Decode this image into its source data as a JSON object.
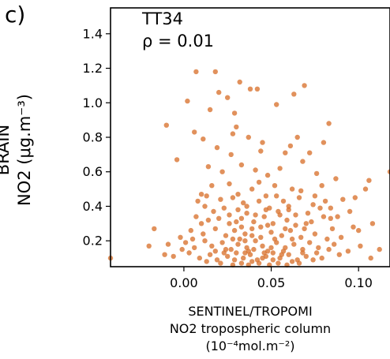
{
  "panel_label": "c)",
  "chart_data": {
    "type": "scatter",
    "title": "",
    "ylabel_lines": [
      "BRAIN",
      "NO2 (μg.m⁻³)"
    ],
    "xlabel_lines": [
      "SENTINEL/TROPOMI",
      "NO2 tropospheric column",
      "(10⁻⁴mol.m⁻²)"
    ],
    "annotations": [
      "TT34",
      "ρ = 0.01"
    ],
    "xlim": [
      -0.042,
      0.118
    ],
    "ylim": [
      0.05,
      1.55
    ],
    "xticks": [
      "0.00",
      "0.05",
      "0.10"
    ],
    "xtick_values": [
      0.0,
      0.05,
      0.1
    ],
    "yticks": [
      "0.2",
      "0.4",
      "0.6",
      "0.8",
      "1.0",
      "1.2",
      "1.4"
    ],
    "ytick_values": [
      0.2,
      0.4,
      0.6,
      0.8,
      1.0,
      1.2,
      1.4
    ],
    "grid": false,
    "marker_color": "#d9722e",
    "points": [
      [
        0.007,
        1.18
      ],
      [
        0.018,
        1.18
      ],
      [
        0.032,
        1.12
      ],
      [
        0.038,
        1.08
      ],
      [
        0.042,
        1.08
      ],
      [
        0.02,
        1.06
      ],
      [
        0.025,
        1.03
      ],
      [
        0.002,
        1.01
      ],
      [
        0.063,
        1.05
      ],
      [
        0.069,
        1.1
      ],
      [
        -0.01,
        0.87
      ],
      [
        0.015,
        0.96
      ],
      [
        0.029,
        0.94
      ],
      [
        0.03,
        0.86
      ],
      [
        0.053,
        0.99
      ],
      [
        0.083,
        0.88
      ],
      [
        0.006,
        0.83
      ],
      [
        0.011,
        0.79
      ],
      [
        0.028,
        0.82
      ],
      [
        0.037,
        0.8
      ],
      [
        0.045,
        0.77
      ],
      [
        0.065,
        0.8
      ],
      [
        0.08,
        0.77
      ],
      [
        -0.004,
        0.67
      ],
      [
        0.019,
        0.74
      ],
      [
        0.027,
        0.7
      ],
      [
        0.044,
        0.72
      ],
      [
        0.058,
        0.71
      ],
      [
        0.061,
        0.75
      ],
      [
        0.072,
        0.71
      ],
      [
        0.118,
        0.6
      ],
      [
        0.014,
        0.63
      ],
      [
        0.022,
        0.6
      ],
      [
        0.033,
        0.64
      ],
      [
        0.041,
        0.61
      ],
      [
        0.048,
        0.58
      ],
      [
        0.055,
        0.62
      ],
      [
        0.068,
        0.66
      ],
      [
        0.076,
        0.59
      ],
      [
        0.087,
        0.56
      ],
      [
        0.106,
        0.55
      ],
      [
        0.016,
        0.52
      ],
      [
        0.026,
        0.53
      ],
      [
        0.039,
        0.5
      ],
      [
        0.043,
        0.54
      ],
      [
        0.052,
        0.52
      ],
      [
        0.062,
        0.5
      ],
      [
        0.079,
        0.52
      ],
      [
        0.104,
        0.5
      ],
      [
        0.01,
        0.47
      ],
      [
        0.008,
        0.43
      ],
      [
        0.013,
        0.46
      ],
      [
        0.021,
        0.44
      ],
      [
        0.028,
        0.45
      ],
      [
        0.034,
        0.42
      ],
      [
        0.047,
        0.46
      ],
      [
        0.057,
        0.43
      ],
      [
        0.066,
        0.45
      ],
      [
        0.074,
        0.41
      ],
      [
        0.081,
        0.43
      ],
      [
        0.091,
        0.44
      ],
      [
        0.012,
        0.4
      ],
      [
        0.017,
        0.37
      ],
      [
        0.023,
        0.39
      ],
      [
        0.031,
        0.38
      ],
      [
        0.036,
        0.36
      ],
      [
        0.049,
        0.39
      ],
      [
        0.054,
        0.37
      ],
      [
        0.06,
        0.38
      ],
      [
        0.071,
        0.36
      ],
      [
        0.078,
        0.39
      ],
      [
        0.007,
        0.34
      ],
      [
        0.014,
        0.32
      ],
      [
        0.02,
        0.33
      ],
      [
        0.026,
        0.3
      ],
      [
        0.033,
        0.33
      ],
      [
        0.04,
        0.31
      ],
      [
        0.046,
        0.34
      ],
      [
        0.051,
        0.3
      ],
      [
        0.059,
        0.32
      ],
      [
        0.064,
        0.29
      ],
      [
        0.073,
        0.31
      ],
      [
        0.084,
        0.33
      ],
      [
        0.097,
        0.28
      ],
      [
        0.108,
        0.3
      ],
      [
        -0.017,
        0.27
      ],
      [
        -0.002,
        0.22
      ],
      [
        0.004,
        0.26
      ],
      [
        0.011,
        0.24
      ],
      [
        0.018,
        0.27
      ],
      [
        0.024,
        0.23
      ],
      [
        0.029,
        0.26
      ],
      [
        0.035,
        0.24
      ],
      [
        0.039,
        0.27
      ],
      [
        0.044,
        0.22
      ],
      [
        0.05,
        0.25
      ],
      [
        0.056,
        0.23
      ],
      [
        0.061,
        0.26
      ],
      [
        0.067,
        0.22
      ],
      [
        0.075,
        0.24
      ],
      [
        0.082,
        0.21
      ],
      [
        0.1,
        0.26
      ],
      [
        -0.02,
        0.17
      ],
      [
        -0.009,
        0.18
      ],
      [
        0.001,
        0.19
      ],
      [
        0.006,
        0.16
      ],
      [
        0.012,
        0.2
      ],
      [
        0.016,
        0.17
      ],
      [
        0.022,
        0.19
      ],
      [
        0.027,
        0.15
      ],
      [
        0.031,
        0.18
      ],
      [
        0.036,
        0.16
      ],
      [
        0.041,
        0.2
      ],
      [
        0.045,
        0.17
      ],
      [
        0.048,
        0.14
      ],
      [
        0.053,
        0.19
      ],
      [
        0.058,
        0.16
      ],
      [
        0.063,
        0.18
      ],
      [
        0.068,
        0.15
      ],
      [
        0.072,
        0.19
      ],
      [
        0.077,
        0.16
      ],
      [
        0.086,
        0.18
      ],
      [
        0.094,
        0.14
      ],
      [
        0.112,
        0.15
      ],
      [
        -0.011,
        0.12
      ],
      [
        -0.006,
        0.11
      ],
      [
        0.003,
        0.13
      ],
      [
        0.009,
        0.1
      ],
      [
        0.015,
        0.12
      ],
      [
        0.019,
        0.09
      ],
      [
        0.025,
        0.11
      ],
      [
        0.03,
        0.13
      ],
      [
        0.034,
        0.1
      ],
      [
        0.038,
        0.12
      ],
      [
        0.042,
        0.09
      ],
      [
        0.047,
        0.11
      ],
      [
        0.051,
        0.13
      ],
      [
        0.055,
        0.1
      ],
      [
        0.06,
        0.12
      ],
      [
        0.065,
        0.09
      ],
      [
        0.07,
        0.11
      ],
      [
        0.079,
        0.1
      ],
      [
        0.089,
        0.12
      ],
      [
        0.107,
        0.1
      ],
      [
        -0.042,
        0.1
      ],
      [
        0.021,
        0.07
      ],
      [
        0.028,
        0.06
      ],
      [
        0.033,
        0.07
      ],
      [
        0.037,
        0.06
      ],
      [
        0.043,
        0.07
      ],
      [
        0.049,
        0.06
      ],
      [
        0.054,
        0.07
      ],
      [
        0.059,
        0.06
      ],
      [
        0.066,
        0.07
      ],
      [
        0.032,
        0.21
      ],
      [
        0.037,
        0.14
      ],
      [
        0.04,
        0.15
      ],
      [
        0.035,
        0.2
      ],
      [
        0.046,
        0.13
      ],
      [
        0.052,
        0.21
      ],
      [
        0.057,
        0.14
      ],
      [
        0.028,
        0.21
      ],
      [
        0.024,
        0.15
      ],
      [
        0.039,
        0.23
      ],
      [
        0.044,
        0.28
      ],
      [
        0.05,
        0.16
      ],
      [
        0.062,
        0.21
      ],
      [
        0.069,
        0.27
      ],
      [
        0.033,
        0.28
      ],
      [
        0.041,
        0.35
      ],
      [
        0.055,
        0.35
      ],
      [
        0.048,
        0.29
      ],
      [
        0.03,
        0.31
      ],
      [
        0.058,
        0.27
      ],
      [
        0.026,
        0.35
      ],
      [
        0.064,
        0.35
      ],
      [
        0.036,
        0.4
      ],
      [
        0.043,
        0.43
      ],
      [
        0.053,
        0.46
      ],
      [
        0.039,
        0.08
      ],
      [
        0.045,
        0.1
      ],
      [
        0.051,
        0.09
      ],
      [
        0.035,
        0.13
      ],
      [
        0.029,
        0.09
      ],
      [
        0.056,
        0.12
      ],
      [
        0.062,
        0.08
      ],
      [
        0.023,
        0.13
      ],
      [
        0.068,
        0.13
      ],
      [
        0.074,
        0.09
      ],
      [
        0.018,
        0.14
      ],
      [
        0.013,
        0.08
      ],
      [
        0.076,
        0.13
      ],
      [
        0.083,
        0.15
      ],
      [
        0.09,
        0.22
      ],
      [
        0.095,
        0.37
      ],
      [
        0.085,
        0.27
      ],
      [
        0.101,
        0.17
      ],
      [
        0.098,
        0.45
      ],
      [
        0.088,
        0.34
      ],
      [
        0.01,
        0.3
      ],
      [
        0.005,
        0.21
      ],
      [
        -0.001,
        0.15
      ],
      [
        0.07,
        0.3
      ],
      [
        0.08,
        0.34
      ],
      [
        0.047,
        0.38
      ],
      [
        0.031,
        0.47
      ],
      [
        0.06,
        0.4
      ],
      [
        0.067,
        0.49
      ],
      [
        0.075,
        0.46
      ],
      [
        0.084,
        0.39
      ]
    ]
  }
}
